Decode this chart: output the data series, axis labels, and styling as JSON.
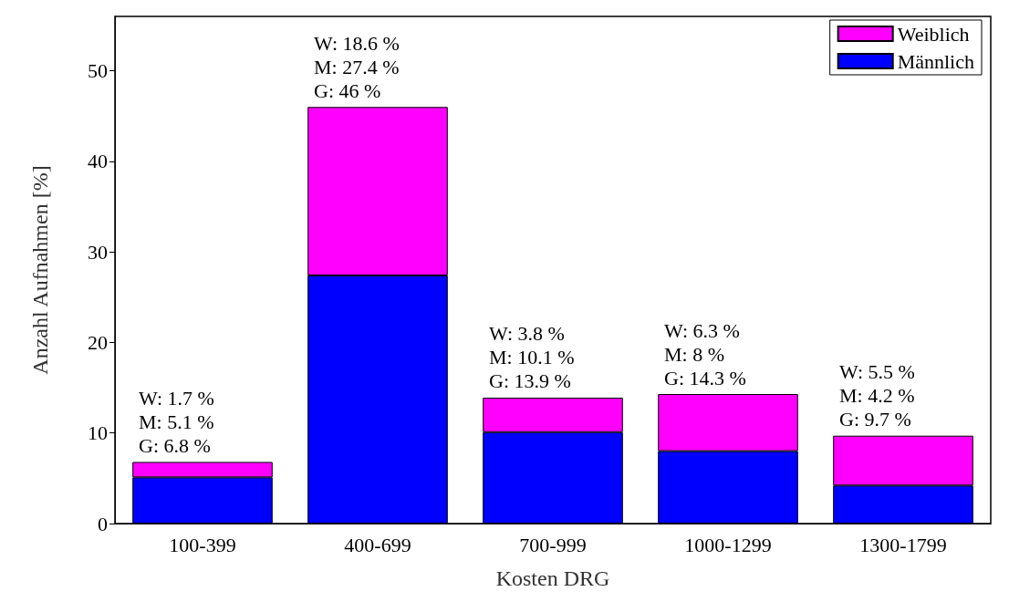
{
  "chart_data": {
    "type": "bar",
    "stacked": true,
    "xlabel": "Kosten DRG",
    "ylabel": "Anzahl Aufnahmen [%]",
    "categories": [
      "100-399",
      "400-699",
      "700-999",
      "1000-1299",
      "1300-1799"
    ],
    "series": [
      {
        "name": "Männlich",
        "color": "#0000ff",
        "values": [
          5.1,
          27.4,
          10.1,
          8,
          4.2
        ]
      },
      {
        "name": "Weiblich",
        "color": "#ff00ff",
        "values": [
          1.7,
          18.6,
          3.8,
          6.3,
          5.5
        ]
      }
    ],
    "totals": [
      "W: 1.7 %\nM: 5.1 %\nG: 6.8 %",
      "W: 18.6 %\nM: 27.4 %\nG: 46 %",
      "W: 3.8 %\nM: 10.1 %\nG: 13.9 %",
      "W: 6.3 %\nM: 8 %\nG: 14.3 %",
      "W: 5.5 %\nM: 4.2 %\nG: 9.7 %"
    ],
    "ylim": [
      0,
      56
    ],
    "yticks": [
      0,
      10,
      20,
      30,
      40,
      50
    ],
    "grid": false,
    "legend": "top right"
  }
}
